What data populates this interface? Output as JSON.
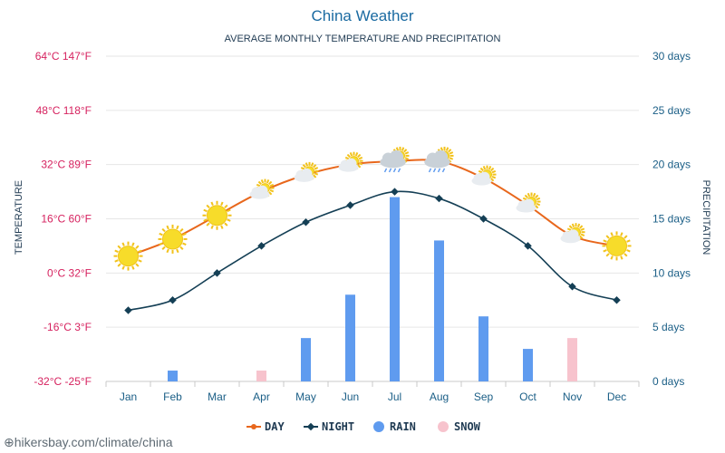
{
  "colors": {
    "day": "#e8671c",
    "night": "#143f55",
    "rain": "#5f9bef",
    "snow": "#f7c3cd",
    "temp_label": "#d6225f",
    "precip_label": "#1a5e86",
    "title": "#1a6aa1",
    "grid": "#e6e6e6"
  },
  "watermark": "hikersbay.com/climate/china",
  "chart_data": {
    "type": "line",
    "title": "China Weather",
    "subtitle": "AVERAGE MONTHLY TEMPERATURE AND PRECIPITATION",
    "ylabel_left": "TEMPERATURE",
    "ylabel_right": "PRECIPITATION",
    "categories": [
      "Jan",
      "Feb",
      "Mar",
      "Apr",
      "May",
      "Jun",
      "Jul",
      "Aug",
      "Sep",
      "Oct",
      "Nov",
      "Dec"
    ],
    "ylim_left": [
      -32,
      64
    ],
    "ylim_right": [
      0,
      30
    ],
    "left_ticks": [
      {
        "value": 64,
        "label": "64°C 147°F"
      },
      {
        "value": 48,
        "label": "48°C 118°F"
      },
      {
        "value": 32,
        "label": "32°C 89°F"
      },
      {
        "value": 16,
        "label": "16°C 60°F"
      },
      {
        "value": 0,
        "label": "0°C 32°F"
      },
      {
        "value": -16,
        "label": "-16°C 3°F"
      },
      {
        "value": -32,
        "label": "-32°C -25°F"
      }
    ],
    "right_ticks": [
      {
        "value": 30,
        "label": "30 days"
      },
      {
        "value": 25,
        "label": "25 days"
      },
      {
        "value": 20,
        "label": "20 days"
      },
      {
        "value": 15,
        "label": "15 days"
      },
      {
        "value": 10,
        "label": "10 days"
      },
      {
        "value": 5,
        "label": "5 days"
      },
      {
        "value": 0,
        "label": "0 days"
      }
    ],
    "series": [
      {
        "name": "DAY",
        "axis": "left",
        "values": [
          5,
          10,
          17,
          24,
          29,
          32,
          33,
          33,
          28,
          20,
          11,
          8
        ],
        "icons": [
          "sun",
          "sun",
          "sun",
          "partly-cloudy",
          "partly-cloudy",
          "partly-cloudy",
          "rain-cloud",
          "rain-cloud",
          "partly-cloudy",
          "partly-cloudy",
          "partly-cloudy",
          "sun"
        ]
      },
      {
        "name": "NIGHT",
        "axis": "right_none",
        "values": [
          -11,
          -8,
          0,
          8,
          15,
          20,
          24,
          22,
          16,
          8,
          -4,
          -8
        ]
      },
      {
        "name": "RAIN",
        "axis": "right",
        "values": [
          0,
          1,
          0,
          0,
          4,
          8,
          17,
          13,
          6,
          3,
          0,
          0
        ]
      },
      {
        "name": "SNOW",
        "axis": "right",
        "values": [
          0,
          0,
          0,
          1,
          0,
          0,
          0,
          0,
          0,
          0,
          4,
          0
        ]
      }
    ],
    "legend": [
      {
        "name": "DAY",
        "type": "line"
      },
      {
        "name": "NIGHT",
        "type": "line"
      },
      {
        "name": "RAIN",
        "type": "dot"
      },
      {
        "name": "SNOW",
        "type": "dot"
      }
    ]
  }
}
